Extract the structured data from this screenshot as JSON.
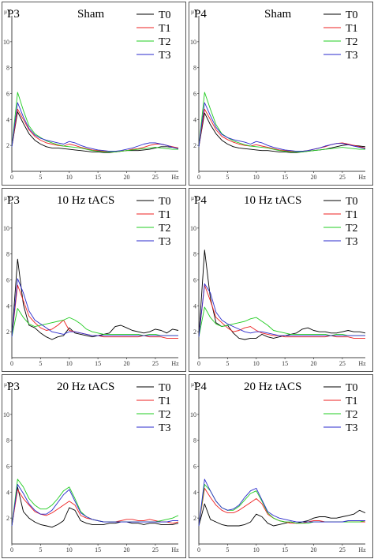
{
  "chart_data": [
    {
      "type": "line",
      "panel_label": "P3",
      "title": "Sham",
      "ylabel": "µV",
      "xunit": "Hz",
      "xlim": [
        0,
        29
      ],
      "ylim": [
        0,
        12
      ],
      "xticks": [
        0,
        5,
        10,
        15,
        20,
        25
      ],
      "yticks": [
        2,
        4,
        6,
        8,
        10
      ],
      "legend_position": "top-right",
      "x": [
        0,
        1,
        2,
        3,
        4,
        5,
        6,
        7,
        8,
        9,
        10,
        11,
        12,
        13,
        14,
        15,
        16,
        17,
        18,
        19,
        20,
        21,
        22,
        23,
        24,
        25,
        26,
        27,
        28,
        29
      ],
      "series": [
        {
          "name": "T0",
          "color": "#000000",
          "values": [
            1.9,
            4.6,
            3.7,
            2.9,
            2.4,
            2.1,
            1.9,
            1.8,
            1.8,
            1.75,
            1.7,
            1.65,
            1.6,
            1.55,
            1.5,
            1.5,
            1.45,
            1.45,
            1.5,
            1.55,
            1.6,
            1.6,
            1.6,
            1.65,
            1.7,
            1.8,
            1.9,
            1.9,
            1.85,
            1.8
          ]
        },
        {
          "name": "T1",
          "color": "#ee2222",
          "values": [
            1.9,
            4.8,
            4.0,
            3.2,
            2.7,
            2.4,
            2.2,
            2.1,
            2.0,
            1.95,
            2.1,
            2.0,
            1.85,
            1.75,
            1.65,
            1.6,
            1.55,
            1.5,
            1.5,
            1.55,
            1.6,
            1.7,
            1.75,
            1.85,
            2.0,
            2.1,
            2.1,
            2.0,
            1.9,
            1.8
          ]
        },
        {
          "name": "T2",
          "color": "#22cc22",
          "values": [
            1.9,
            6.1,
            4.7,
            3.5,
            2.9,
            2.6,
            2.35,
            2.2,
            2.05,
            1.95,
            1.9,
            1.85,
            1.8,
            1.7,
            1.6,
            1.55,
            1.5,
            1.5,
            1.5,
            1.55,
            1.6,
            1.65,
            1.7,
            1.75,
            1.8,
            1.85,
            1.8,
            1.75,
            1.7,
            1.7
          ]
        },
        {
          "name": "T3",
          "color": "#2a2acc",
          "values": [
            1.9,
            5.3,
            4.2,
            3.3,
            2.8,
            2.55,
            2.4,
            2.3,
            2.2,
            2.1,
            2.3,
            2.2,
            2.0,
            1.85,
            1.75,
            1.65,
            1.6,
            1.55,
            1.55,
            1.6,
            1.7,
            1.8,
            1.95,
            2.1,
            2.2,
            2.2,
            2.1,
            2.0,
            1.85,
            1.75
          ]
        }
      ]
    },
    {
      "type": "line",
      "panel_label": "P4",
      "title": "Sham",
      "ylabel": "µV",
      "xunit": "Hz",
      "xlim": [
        0,
        29
      ],
      "ylim": [
        0,
        12
      ],
      "xticks": [
        0,
        5,
        10,
        15,
        20,
        25
      ],
      "yticks": [
        2,
        4,
        6,
        8,
        10
      ],
      "legend_position": "top-right",
      "x": [
        0,
        1,
        2,
        3,
        4,
        5,
        6,
        7,
        8,
        9,
        10,
        11,
        12,
        13,
        14,
        15,
        16,
        17,
        18,
        19,
        20,
        21,
        22,
        23,
        24,
        25,
        26,
        27,
        28,
        29
      ],
      "series": [
        {
          "name": "T0",
          "color": "#000000",
          "values": [
            1.9,
            4.5,
            3.6,
            2.9,
            2.4,
            2.1,
            1.9,
            1.8,
            1.75,
            1.7,
            1.65,
            1.6,
            1.6,
            1.55,
            1.5,
            1.5,
            1.45,
            1.45,
            1.5,
            1.55,
            1.6,
            1.65,
            1.7,
            1.8,
            1.9,
            2.0,
            2.05,
            2.0,
            1.95,
            1.9
          ]
        },
        {
          "name": "T1",
          "color": "#ee2222",
          "values": [
            1.9,
            4.8,
            4.0,
            3.2,
            2.7,
            2.45,
            2.25,
            2.1,
            2.0,
            1.95,
            2.05,
            1.95,
            1.85,
            1.75,
            1.65,
            1.6,
            1.55,
            1.5,
            1.55,
            1.6,
            1.7,
            1.8,
            1.9,
            2.05,
            2.15,
            2.2,
            2.1,
            2.0,
            1.9,
            1.8
          ]
        },
        {
          "name": "T2",
          "color": "#22cc22",
          "values": [
            1.9,
            6.1,
            4.8,
            3.6,
            2.9,
            2.6,
            2.35,
            2.2,
            2.05,
            1.95,
            1.9,
            1.85,
            1.8,
            1.7,
            1.6,
            1.55,
            1.5,
            1.5,
            1.5,
            1.55,
            1.6,
            1.65,
            1.7,
            1.75,
            1.8,
            1.85,
            1.8,
            1.75,
            1.7,
            1.7
          ]
        },
        {
          "name": "T3",
          "color": "#2a2acc",
          "values": [
            1.9,
            5.3,
            4.3,
            3.4,
            2.85,
            2.6,
            2.45,
            2.35,
            2.25,
            2.1,
            2.3,
            2.2,
            2.0,
            1.85,
            1.75,
            1.65,
            1.6,
            1.55,
            1.55,
            1.6,
            1.7,
            1.8,
            1.95,
            2.05,
            2.15,
            2.15,
            2.05,
            1.95,
            1.85,
            1.75
          ]
        }
      ]
    },
    {
      "type": "line",
      "panel_label": "P3",
      "title": "10 Hz tACS",
      "ylabel": "µV",
      "xunit": "Hz",
      "xlim": [
        0,
        29
      ],
      "ylim": [
        0,
        12
      ],
      "xticks": [
        0,
        5,
        10,
        15,
        20,
        25
      ],
      "yticks": [
        2,
        4,
        6,
        8,
        10
      ],
      "legend_position": "top-right",
      "x": [
        0,
        1,
        2,
        3,
        4,
        5,
        6,
        7,
        8,
        9,
        10,
        11,
        12,
        13,
        14,
        15,
        16,
        17,
        18,
        19,
        20,
        21,
        22,
        23,
        24,
        25,
        26,
        27,
        28,
        29
      ],
      "series": [
        {
          "name": "T0",
          "color": "#000000",
          "values": [
            1.6,
            7.6,
            4.1,
            2.5,
            2.3,
            1.9,
            1.6,
            1.4,
            1.6,
            1.7,
            2.3,
            1.9,
            1.8,
            1.7,
            1.6,
            1.7,
            1.8,
            1.9,
            2.4,
            2.5,
            2.3,
            2.1,
            2.0,
            1.9,
            2.0,
            2.2,
            2.1,
            1.9,
            2.2,
            2.1
          ]
        },
        {
          "name": "T1",
          "color": "#ee2222",
          "values": [
            1.6,
            5.6,
            4.4,
            3.2,
            2.7,
            2.3,
            2.1,
            2.2,
            2.5,
            2.9,
            2.1,
            2.0,
            1.9,
            1.8,
            1.7,
            1.7,
            1.6,
            1.6,
            1.6,
            1.6,
            1.6,
            1.6,
            1.6,
            1.7,
            1.6,
            1.6,
            1.6,
            1.5,
            1.5,
            1.5
          ]
        },
        {
          "name": "T2",
          "color": "#22cc22",
          "values": [
            1.6,
            3.8,
            3.1,
            2.6,
            2.4,
            2.5,
            2.6,
            2.7,
            2.8,
            2.9,
            3.1,
            2.9,
            2.6,
            2.2,
            2.0,
            1.9,
            1.8,
            1.8,
            1.8,
            1.8,
            1.8,
            1.8,
            1.8,
            1.7,
            1.8,
            1.8,
            1.7,
            1.7,
            1.7,
            1.7
          ]
        },
        {
          "name": "T3",
          "color": "#2a2acc",
          "values": [
            1.6,
            6.1,
            5.0,
            3.6,
            2.9,
            2.6,
            2.3,
            2.0,
            1.9,
            1.8,
            2.0,
            2.0,
            1.9,
            1.8,
            1.7,
            1.7,
            1.7,
            1.7,
            1.7,
            1.7,
            1.7,
            1.7,
            1.7,
            1.7,
            1.7,
            1.7,
            1.7,
            1.7,
            1.7,
            1.7
          ]
        }
      ]
    },
    {
      "type": "line",
      "panel_label": "P4",
      "title": "10 Hz tACS",
      "ylabel": "µV",
      "xunit": "Hz",
      "xlim": [
        0,
        29
      ],
      "ylim": [
        0,
        12
      ],
      "xticks": [
        0,
        5,
        10,
        15,
        20,
        25
      ],
      "yticks": [
        2,
        4,
        6,
        8,
        10
      ],
      "legend_position": "top-right",
      "x": [
        0,
        1,
        2,
        3,
        4,
        5,
        6,
        7,
        8,
        9,
        10,
        11,
        12,
        13,
        14,
        15,
        16,
        17,
        18,
        19,
        20,
        21,
        22,
        23,
        24,
        25,
        26,
        27,
        28,
        29
      ],
      "series": [
        {
          "name": "T0",
          "color": "#000000",
          "values": [
            1.6,
            8.3,
            4.6,
            2.7,
            2.4,
            2.5,
            1.9,
            1.5,
            1.4,
            1.5,
            1.5,
            1.8,
            1.6,
            1.5,
            1.6,
            1.7,
            1.8,
            1.9,
            2.2,
            2.3,
            2.1,
            2.0,
            2.0,
            1.9,
            1.9,
            2.0,
            2.1,
            2.0,
            2.0,
            1.9
          ]
        },
        {
          "name": "T1",
          "color": "#ee2222",
          "values": [
            1.6,
            5.6,
            4.4,
            3.1,
            2.7,
            2.3,
            2.0,
            2.1,
            2.3,
            2.4,
            2.1,
            1.9,
            1.8,
            1.7,
            1.7,
            1.6,
            1.6,
            1.6,
            1.6,
            1.6,
            1.6,
            1.6,
            1.6,
            1.7,
            1.6,
            1.6,
            1.6,
            1.5,
            1.5,
            1.5
          ]
        },
        {
          "name": "T2",
          "color": "#22cc22",
          "values": [
            1.6,
            3.9,
            3.1,
            2.6,
            2.4,
            2.5,
            2.6,
            2.7,
            2.8,
            3.0,
            3.1,
            2.8,
            2.5,
            2.1,
            2.0,
            1.9,
            1.8,
            1.8,
            1.8,
            1.8,
            1.8,
            1.8,
            1.8,
            1.7,
            1.8,
            1.8,
            1.7,
            1.7,
            1.7,
            1.7
          ]
        },
        {
          "name": "T3",
          "color": "#2a2acc",
          "values": [
            1.6,
            5.7,
            5.0,
            3.5,
            2.9,
            2.6,
            2.4,
            2.2,
            2.0,
            1.9,
            2.0,
            2.0,
            1.9,
            1.8,
            1.7,
            1.7,
            1.7,
            1.7,
            1.7,
            1.7,
            1.7,
            1.7,
            1.7,
            1.7,
            1.7,
            1.7,
            1.7,
            1.7,
            1.7,
            1.7
          ]
        }
      ]
    },
    {
      "type": "line",
      "panel_label": "P3",
      "title": "20 Hz tACS",
      "ylabel": "µV",
      "xunit": "Hz",
      "xlim": [
        0,
        29
      ],
      "ylim": [
        0,
        12
      ],
      "xticks": [
        0,
        5,
        10,
        15,
        20,
        25
      ],
      "yticks": [
        2,
        4,
        6,
        8,
        10
      ],
      "legend_position": "top-right",
      "x": [
        0,
        1,
        2,
        3,
        4,
        5,
        6,
        7,
        8,
        9,
        10,
        11,
        12,
        13,
        14,
        15,
        16,
        17,
        18,
        19,
        20,
        21,
        22,
        23,
        24,
        25,
        26,
        27,
        28,
        29
      ],
      "series": [
        {
          "name": "T0",
          "color": "#000000",
          "values": [
            1.4,
            4.4,
            2.5,
            2.0,
            1.7,
            1.5,
            1.4,
            1.3,
            1.5,
            1.8,
            2.8,
            2.6,
            1.8,
            1.6,
            1.5,
            1.5,
            1.5,
            1.6,
            1.6,
            1.7,
            1.7,
            1.6,
            1.6,
            1.5,
            1.6,
            1.6,
            1.5,
            1.5,
            1.5,
            1.6
          ]
        },
        {
          "name": "T1",
          "color": "#ee2222",
          "values": [
            1.4,
            4.2,
            3.5,
            3.0,
            2.5,
            2.3,
            2.2,
            2.4,
            2.7,
            3.0,
            3.3,
            3.0,
            2.2,
            2.0,
            1.9,
            1.8,
            1.7,
            1.7,
            1.7,
            1.8,
            1.9,
            1.9,
            1.8,
            1.8,
            1.9,
            1.8,
            1.7,
            1.7,
            1.6,
            1.7
          ]
        },
        {
          "name": "T2",
          "color": "#22cc22",
          "values": [
            1.4,
            5.0,
            4.4,
            3.5,
            3.0,
            2.7,
            2.7,
            3.0,
            3.5,
            4.1,
            4.4,
            3.5,
            2.5,
            2.1,
            1.9,
            1.8,
            1.7,
            1.7,
            1.7,
            1.7,
            1.7,
            1.7,
            1.7,
            1.7,
            1.7,
            1.7,
            1.8,
            1.9,
            2.0,
            2.2
          ]
        },
        {
          "name": "T3",
          "color": "#2a2acc",
          "values": [
            1.4,
            4.6,
            3.9,
            3.1,
            2.6,
            2.3,
            2.3,
            2.6,
            3.2,
            3.8,
            4.2,
            3.3,
            2.4,
            2.1,
            1.9,
            1.8,
            1.7,
            1.7,
            1.7,
            1.7,
            1.7,
            1.7,
            1.7,
            1.7,
            1.7,
            1.7,
            1.7,
            1.7,
            1.8,
            1.8
          ]
        }
      ]
    },
    {
      "type": "line",
      "panel_label": "P4",
      "title": "20 Hz tACS",
      "ylabel": "µV",
      "xunit": "Hz",
      "xlim": [
        0,
        29
      ],
      "ylim": [
        0,
        12
      ],
      "xticks": [
        0,
        5,
        10,
        15,
        20,
        25
      ],
      "yticks": [
        2,
        4,
        6,
        8,
        10
      ],
      "legend_position": "top-right",
      "x": [
        0,
        1,
        2,
        3,
        4,
        5,
        6,
        7,
        8,
        9,
        10,
        11,
        12,
        13,
        14,
        15,
        16,
        17,
        18,
        19,
        20,
        21,
        22,
        23,
        24,
        25,
        26,
        27,
        28,
        29
      ],
      "series": [
        {
          "name": "T0",
          "color": "#000000",
          "values": [
            1.4,
            3.1,
            1.9,
            1.7,
            1.5,
            1.4,
            1.4,
            1.4,
            1.5,
            1.7,
            2.3,
            2.1,
            1.6,
            1.4,
            1.5,
            1.6,
            1.7,
            1.6,
            1.7,
            1.8,
            2.0,
            2.1,
            2.1,
            2.0,
            2.0,
            2.1,
            2.2,
            2.3,
            2.6,
            2.4
          ]
        },
        {
          "name": "T1",
          "color": "#ee2222",
          "values": [
            1.4,
            4.3,
            3.6,
            3.0,
            2.6,
            2.4,
            2.4,
            2.6,
            2.9,
            3.2,
            3.5,
            3.1,
            2.3,
            2.0,
            1.8,
            1.7,
            1.6,
            1.6,
            1.6,
            1.7,
            1.8,
            1.8,
            1.7,
            1.7,
            1.7,
            1.7,
            1.7,
            1.7,
            1.7,
            1.7
          ]
        },
        {
          "name": "T2",
          "color": "#22cc22",
          "values": [
            1.4,
            4.6,
            4.1,
            3.3,
            2.8,
            2.6,
            2.6,
            2.9,
            3.4,
            3.9,
            4.1,
            3.3,
            2.4,
            2.0,
            1.8,
            1.7,
            1.7,
            1.6,
            1.6,
            1.6,
            1.7,
            1.7,
            1.7,
            1.7,
            1.7,
            1.7,
            1.7,
            1.7,
            1.7,
            1.8
          ]
        },
        {
          "name": "T3",
          "color": "#2a2acc",
          "values": [
            1.4,
            5.0,
            4.1,
            3.3,
            2.8,
            2.6,
            2.7,
            3.0,
            3.6,
            4.1,
            4.3,
            3.4,
            2.5,
            2.2,
            2.0,
            1.9,
            1.8,
            1.7,
            1.7,
            1.7,
            1.7,
            1.7,
            1.7,
            1.7,
            1.7,
            1.7,
            1.8,
            1.8,
            1.8,
            1.8
          ]
        }
      ]
    }
  ]
}
